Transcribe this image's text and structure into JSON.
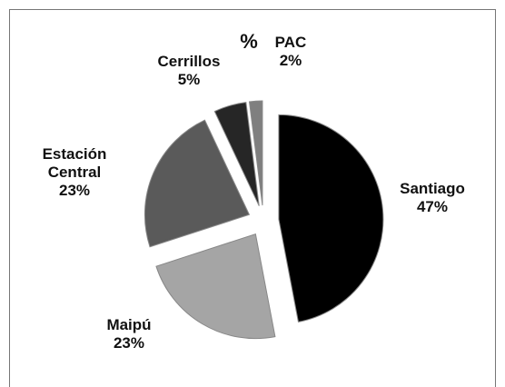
{
  "chart_data": {
    "type": "pie",
    "categories": [
      "Santiago",
      "Maipú",
      "Estación Central",
      "Cerrillos",
      "PAC"
    ],
    "values": [
      47,
      23,
      23,
      5,
      2
    ],
    "value_labels": [
      "47%",
      "23%",
      "23%",
      "5%",
      "2%"
    ],
    "colors": [
      "#000000",
      "#a5a5a5",
      "#5a5a5a",
      "#262626",
      "#7f7f7f"
    ],
    "annotations": [
      "%"
    ]
  }
}
